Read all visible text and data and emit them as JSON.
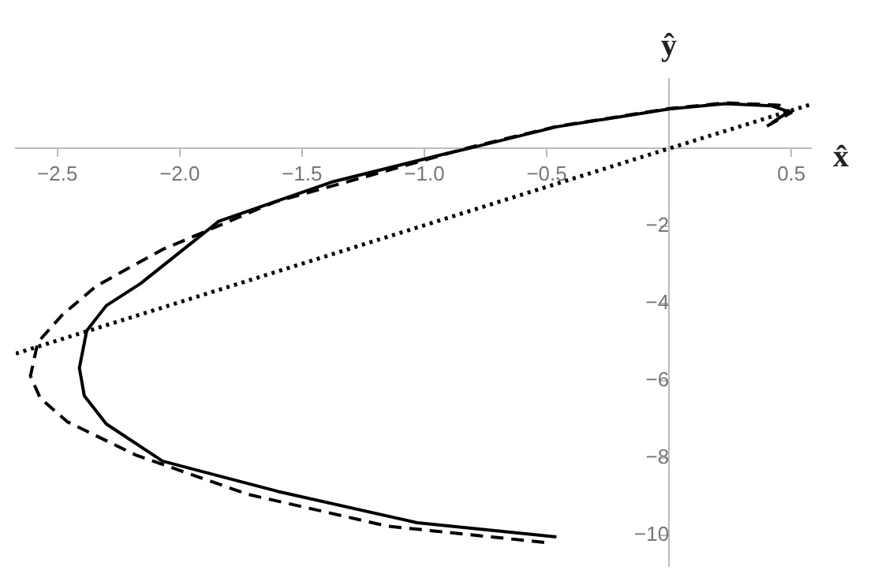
{
  "chart_data": {
    "type": "line",
    "xlabel": "x̂",
    "ylabel": "ŷ",
    "xlim": [
      -2.67,
      0.58
    ],
    "ylim": [
      -10.8,
      1.8
    ],
    "xticks": [
      -2.5,
      {
        "value": -2,
        "label": "−2.0"
      },
      -1.5,
      {
        "value": -1,
        "label": "−1.0"
      },
      -0.5,
      0.5
    ],
    "yticks": [
      -10,
      -8,
      -6,
      -4,
      -2
    ],
    "grid": false,
    "series": [
      {
        "color": "#000000",
        "line_style": "solid",
        "x": [
          -0.46,
          -1.03,
          -1.6,
          -2.07,
          -2.3,
          -2.39,
          -2.41,
          -2.38,
          -2.3,
          -2.16,
          -1.84,
          -1.38,
          -0.91,
          -0.82,
          -0.46,
          0,
          0.23,
          0.42,
          0.49,
          0.42
        ],
        "values": [
          -10.04,
          -9.67,
          -8.86,
          -8.08,
          -7.12,
          -6.39,
          -5.67,
          -4.71,
          -4.06,
          -3.49,
          -1.88,
          -0.87,
          -0.13,
          0,
          0.56,
          1.02,
          1.16,
          1.1,
          0.95,
          0.66
        ]
      },
      {
        "color": "#000000",
        "line_style": "dashed",
        "x": [
          -0.51,
          -1.15,
          -1.72,
          -2.18,
          -2.46,
          -2.57,
          -2.61,
          -2.58,
          -2.48,
          -2.34,
          -2.07,
          -1.61,
          -1.15,
          -0.82,
          -0.46,
          0,
          0.23,
          0.45,
          0.5,
          0.4
        ],
        "values": [
          -10.18,
          -9.76,
          -8.94,
          -7.92,
          -7.06,
          -6.45,
          -5.88,
          -5.01,
          -4.3,
          -3.55,
          -2.61,
          -1.38,
          -0.57,
          0.02,
          0.57,
          1.03,
          1.18,
          1.12,
          0.93,
          0.58
        ]
      },
      {
        "color": "#000000",
        "line_style": "dotted",
        "x": [
          -2.67,
          0,
          0.58
        ],
        "values": [
          -5.3,
          0,
          1.14
        ]
      }
    ]
  }
}
